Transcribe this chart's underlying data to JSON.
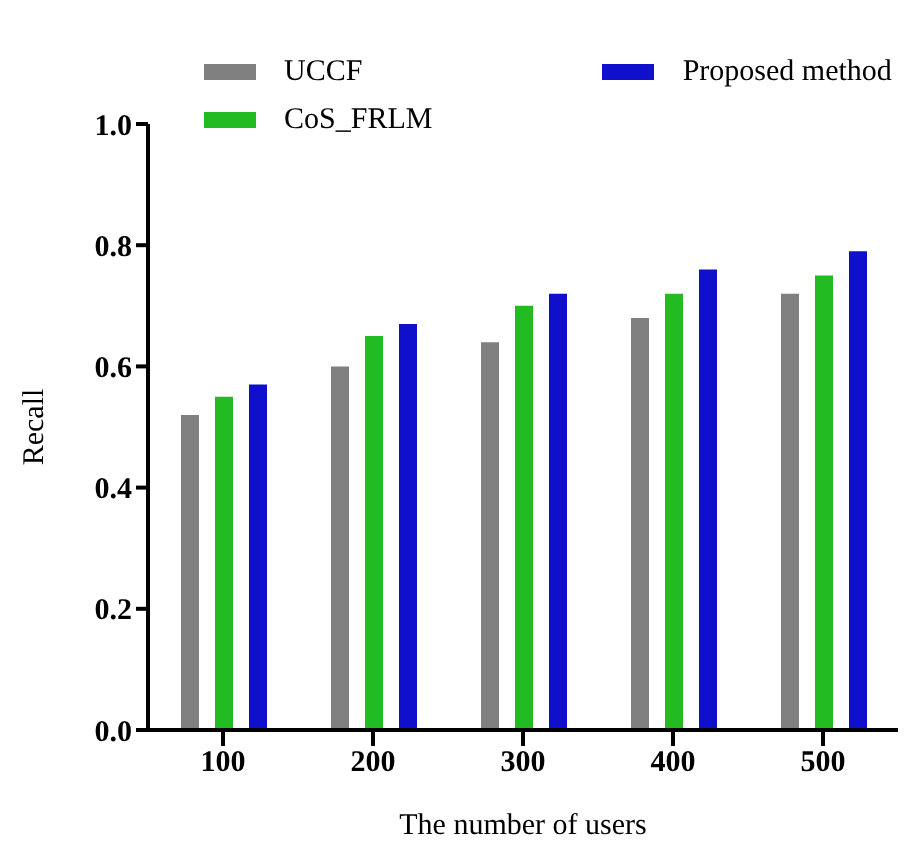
{
  "chart_data": {
    "type": "bar",
    "xlabel": "The number of users",
    "ylabel": "Recall",
    "categories": [
      "100",
      "200",
      "300",
      "400",
      "500"
    ],
    "series": [
      {
        "name": "UCCF",
        "color": "#808080",
        "values": [
          0.52,
          0.6,
          0.64,
          0.68,
          0.72
        ]
      },
      {
        "name": "CoS_FRLM",
        "color": "#22bb22",
        "values": [
          0.55,
          0.65,
          0.7,
          0.72,
          0.75
        ]
      },
      {
        "name": "Proposed method",
        "color": "#1010cc",
        "values": [
          0.57,
          0.67,
          0.72,
          0.76,
          0.79
        ]
      }
    ],
    "ylim": [
      0,
      1
    ],
    "yticks": [
      {
        "value": 0,
        "label": "0.0"
      },
      {
        "value": 0.2,
        "label": "0.2"
      },
      {
        "value": 0.4,
        "label": "0.4"
      },
      {
        "value": 0.6,
        "label": "0.6"
      },
      {
        "value": 0.8,
        "label": "0.8"
      },
      {
        "value": 1,
        "label": "1.0"
      }
    ],
    "grid": false,
    "legend": "top left"
  }
}
